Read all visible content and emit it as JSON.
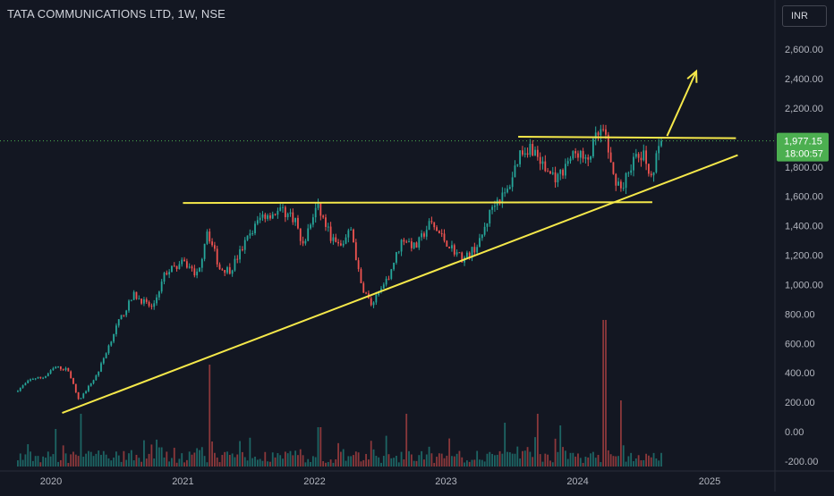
{
  "header": {
    "symbol_title": "TATA COMMUNICATIONS LTD, 1W, NSE",
    "currency": "INR"
  },
  "price_label": {
    "price": "1,977.15",
    "countdown": "18:00:57"
  },
  "colors": {
    "background": "#131722",
    "up": "#26a69a",
    "down": "#ef5350",
    "trendline": "#f5e84a",
    "price_badge": "#4caf50"
  },
  "chart_data": {
    "type": "candlestick",
    "title": "TATA COMMUNICATIONS LTD, 1W, NSE",
    "y_axis": {
      "ticks": [
        "2,600.00",
        "2,400.00",
        "2,200.00",
        "2,000.00",
        "1,800.00",
        "1,600.00",
        "1,400.00",
        "1,200.00",
        "1,000.00",
        "800.00",
        "600.00",
        "400.00",
        "200.00",
        "0.00",
        "-200.00"
      ],
      "ylim": [
        -200,
        2700
      ],
      "position": "right"
    },
    "x_axis": {
      "ticks": [
        "2020",
        "2021",
        "2022",
        "2023",
        "2024",
        "2025"
      ],
      "xlim": [
        "2019-10-01",
        "2025-06-01"
      ]
    },
    "last_price": 1977.15,
    "price_path": [
      [
        "2019-10-01",
        270
      ],
      [
        "2019-11-15",
        360
      ],
      [
        "2019-12-20",
        370
      ],
      [
        "2020-01-20",
        440
      ],
      [
        "2020-02-25",
        420
      ],
      [
        "2020-03-25",
        210
      ],
      [
        "2020-05-15",
        390
      ],
      [
        "2020-07-10",
        730
      ],
      [
        "2020-08-25",
        930
      ],
      [
        "2020-10-15",
        840
      ],
      [
        "2020-11-20",
        1080
      ],
      [
        "2021-01-10",
        1150
      ],
      [
        "2021-02-20",
        1060
      ],
      [
        "2021-03-15",
        1380
      ],
      [
        "2021-04-20",
        1110
      ],
      [
        "2021-05-20",
        1100
      ],
      [
        "2021-07-10",
        1330
      ],
      [
        "2021-08-15",
        1470
      ],
      [
        "2021-10-10",
        1500
      ],
      [
        "2021-11-15",
        1450
      ],
      [
        "2021-12-05",
        1250
      ],
      [
        "2022-01-15",
        1540
      ],
      [
        "2022-02-25",
        1310
      ],
      [
        "2022-03-20",
        1250
      ],
      [
        "2022-04-20",
        1380
      ],
      [
        "2022-05-15",
        1010
      ],
      [
        "2022-06-15",
        860
      ],
      [
        "2022-07-25",
        1010
      ],
      [
        "2022-09-10",
        1320
      ],
      [
        "2022-10-15",
        1250
      ],
      [
        "2022-11-25",
        1420
      ],
      [
        "2023-01-15",
        1270
      ],
      [
        "2023-02-25",
        1170
      ],
      [
        "2023-04-10",
        1280
      ],
      [
        "2023-05-20",
        1560
      ],
      [
        "2023-06-25",
        1620
      ],
      [
        "2023-08-01",
        1900
      ],
      [
        "2023-09-01",
        1940
      ],
      [
        "2023-10-10",
        1780
      ],
      [
        "2023-11-15",
        1720
      ],
      [
        "2023-12-10",
        1840
      ],
      [
        "2024-01-10",
        1900
      ],
      [
        "2024-02-01",
        1820
      ],
      [
        "2024-03-01",
        2010
      ],
      [
        "2024-03-20",
        2040
      ],
      [
        "2024-04-15",
        1740
      ],
      [
        "2024-05-10",
        1660
      ],
      [
        "2024-06-10",
        1850
      ],
      [
        "2024-07-10",
        1870
      ],
      [
        "2024-08-01",
        1740
      ],
      [
        "2024-08-26",
        1977
      ]
    ],
    "candle_range": [
      "2019-10-01",
      "2024-08-26"
    ],
    "volume_spikes": [
      [
        "2021-03-15",
        1.0
      ],
      [
        "2024-03-15",
        1.5
      ],
      [
        "2020-03-25",
        0.45
      ],
      [
        "2024-05-01",
        0.6
      ],
      [
        "2023-06-15",
        0.35
      ],
      [
        "2023-09-10",
        0.45
      ],
      [
        "2022-01-15",
        0.3
      ],
      [
        "2022-09-15",
        0.45
      ],
      [
        "2023-11-15",
        0.32
      ],
      [
        "2020-01-15",
        0.28
      ]
    ],
    "annotations": [
      {
        "kind": "line",
        "from": [
          "2020-02-01",
          127
        ],
        "to": [
          "2025-03-20",
          1880
        ]
      },
      {
        "kind": "line",
        "from": [
          "2021-01-01",
          1555
        ],
        "to": [
          "2024-07-26",
          1560
        ]
      },
      {
        "kind": "line",
        "from": [
          "2023-07-20",
          2005
        ],
        "to": [
          "2025-03-15",
          1995
        ]
      },
      {
        "kind": "arrow",
        "from": [
          "2024-09-05",
          2010
        ],
        "to": [
          "2024-11-25",
          2450
        ]
      }
    ],
    "grid": false
  }
}
